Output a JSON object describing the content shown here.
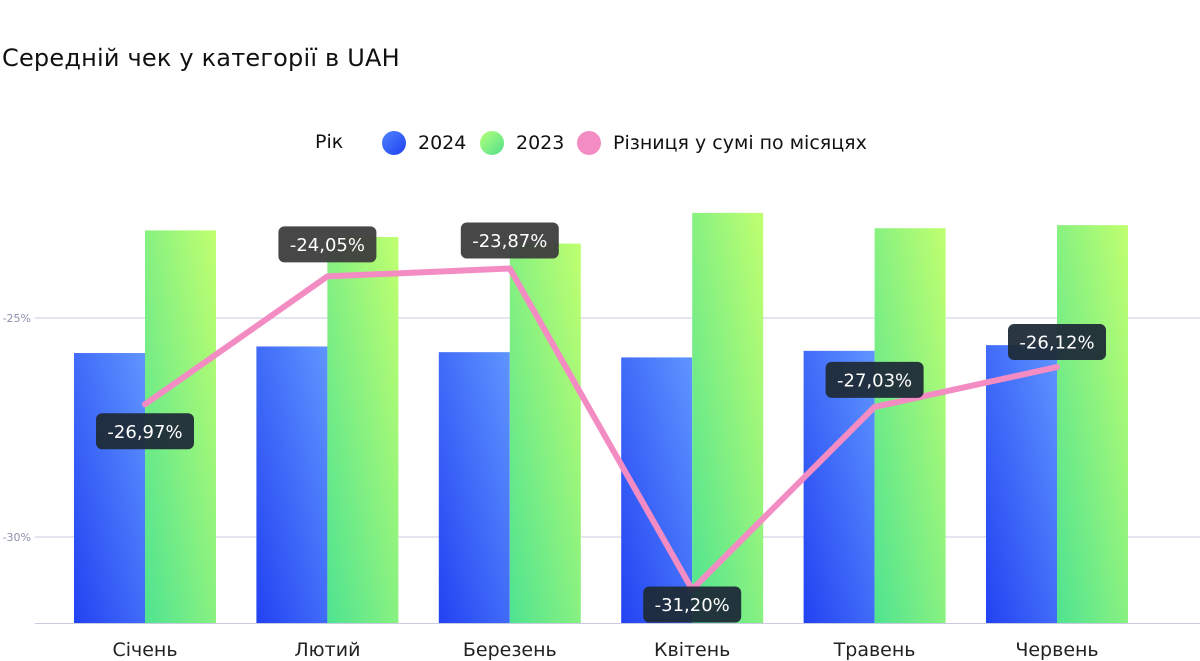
{
  "chart_data": {
    "type": "bar",
    "title": "Середній чек у категорії в UAH",
    "legend_title": "Рік",
    "categories": [
      "Січень",
      "Лютий",
      "Березень",
      "Квітень",
      "Травень",
      "Червень"
    ],
    "series": [
      {
        "name": "2024",
        "values": [
          -25.8,
          -25.65,
          -25.78,
          -25.9,
          -25.75,
          -25.62
        ],
        "color": "#2f55f5"
      },
      {
        "name": "2023",
        "values": [
          -23.0,
          -23.15,
          -23.3,
          -22.6,
          -22.95,
          -22.88
        ],
        "color": "#7ef07e"
      }
    ],
    "line_series": {
      "name": "Різниця у сумі по місяцях",
      "values": [
        -26.97,
        -24.05,
        -23.87,
        -31.2,
        -27.03,
        -26.12
      ],
      "labels": [
        "-26,97%",
        "-24,05%",
        "-23,87%",
        "-31,20%",
        "-27,03%",
        "-26,12%"
      ],
      "color": "#f48cc4"
    },
    "yticks": [
      {
        "value": -25,
        "label": "-25%"
      },
      {
        "value": -30,
        "label": "-30%"
      }
    ],
    "ylim": [
      -32,
      -20
    ],
    "grid": true,
    "legend_position": "top-center"
  }
}
